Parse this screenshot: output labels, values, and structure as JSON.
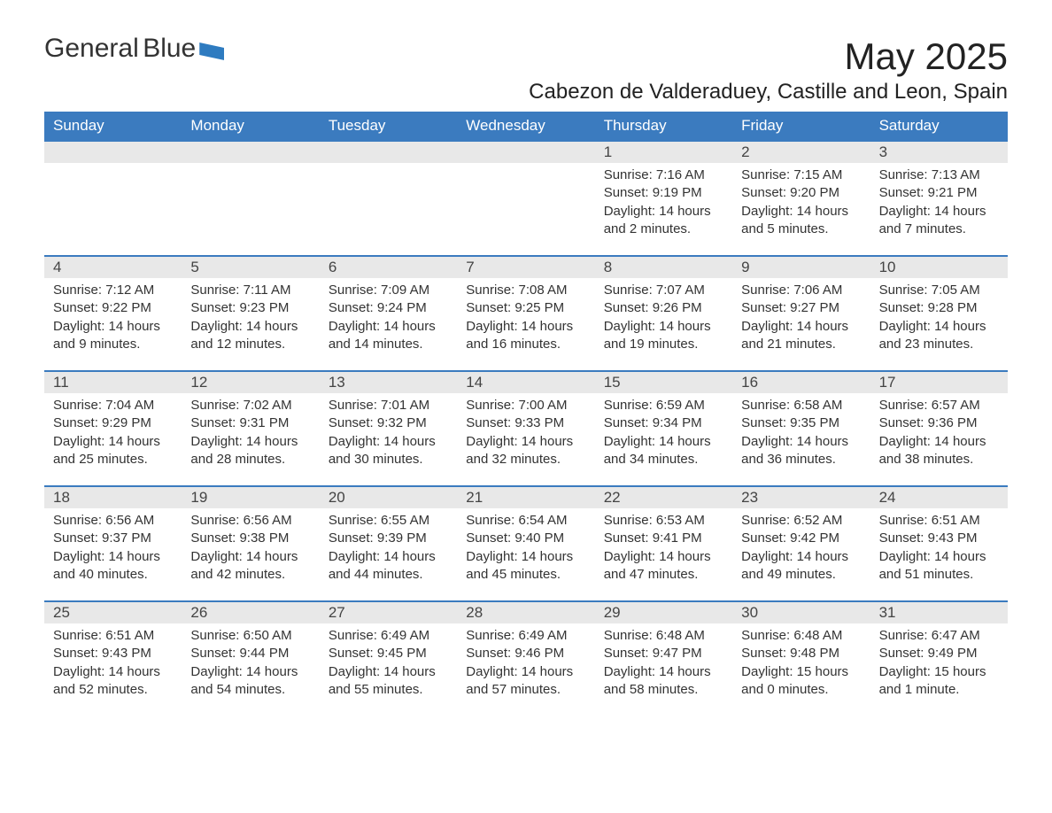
{
  "logo": {
    "text1": "General",
    "text2": "Blue"
  },
  "title": "May 2025",
  "location": "Cabezon de Valderaduey, Castille and Leon, Spain",
  "colors": {
    "header_bg": "#3b7bbf",
    "header_text": "#ffffff",
    "daynum_bg": "#e8e8e8",
    "row_border": "#3b7bbf",
    "body_text": "#333333",
    "logo_blue": "#2e7bc0"
  },
  "fonts": {
    "title_size_pt": 42,
    "location_size_pt": 24,
    "weekday_size_pt": 17,
    "body_size_pt": 15
  },
  "weekdays": [
    "Sunday",
    "Monday",
    "Tuesday",
    "Wednesday",
    "Thursday",
    "Friday",
    "Saturday"
  ],
  "weeks": [
    [
      {
        "day": "",
        "sunrise": "",
        "sunset": "",
        "daylight": ""
      },
      {
        "day": "",
        "sunrise": "",
        "sunset": "",
        "daylight": ""
      },
      {
        "day": "",
        "sunrise": "",
        "sunset": "",
        "daylight": ""
      },
      {
        "day": "",
        "sunrise": "",
        "sunset": "",
        "daylight": ""
      },
      {
        "day": "1",
        "sunrise": "Sunrise: 7:16 AM",
        "sunset": "Sunset: 9:19 PM",
        "daylight": "Daylight: 14 hours and 2 minutes."
      },
      {
        "day": "2",
        "sunrise": "Sunrise: 7:15 AM",
        "sunset": "Sunset: 9:20 PM",
        "daylight": "Daylight: 14 hours and 5 minutes."
      },
      {
        "day": "3",
        "sunrise": "Sunrise: 7:13 AM",
        "sunset": "Sunset: 9:21 PM",
        "daylight": "Daylight: 14 hours and 7 minutes."
      }
    ],
    [
      {
        "day": "4",
        "sunrise": "Sunrise: 7:12 AM",
        "sunset": "Sunset: 9:22 PM",
        "daylight": "Daylight: 14 hours and 9 minutes."
      },
      {
        "day": "5",
        "sunrise": "Sunrise: 7:11 AM",
        "sunset": "Sunset: 9:23 PM",
        "daylight": "Daylight: 14 hours and 12 minutes."
      },
      {
        "day": "6",
        "sunrise": "Sunrise: 7:09 AM",
        "sunset": "Sunset: 9:24 PM",
        "daylight": "Daylight: 14 hours and 14 minutes."
      },
      {
        "day": "7",
        "sunrise": "Sunrise: 7:08 AM",
        "sunset": "Sunset: 9:25 PM",
        "daylight": "Daylight: 14 hours and 16 minutes."
      },
      {
        "day": "8",
        "sunrise": "Sunrise: 7:07 AM",
        "sunset": "Sunset: 9:26 PM",
        "daylight": "Daylight: 14 hours and 19 minutes."
      },
      {
        "day": "9",
        "sunrise": "Sunrise: 7:06 AM",
        "sunset": "Sunset: 9:27 PM",
        "daylight": "Daylight: 14 hours and 21 minutes."
      },
      {
        "day": "10",
        "sunrise": "Sunrise: 7:05 AM",
        "sunset": "Sunset: 9:28 PM",
        "daylight": "Daylight: 14 hours and 23 minutes."
      }
    ],
    [
      {
        "day": "11",
        "sunrise": "Sunrise: 7:04 AM",
        "sunset": "Sunset: 9:29 PM",
        "daylight": "Daylight: 14 hours and 25 minutes."
      },
      {
        "day": "12",
        "sunrise": "Sunrise: 7:02 AM",
        "sunset": "Sunset: 9:31 PM",
        "daylight": "Daylight: 14 hours and 28 minutes."
      },
      {
        "day": "13",
        "sunrise": "Sunrise: 7:01 AM",
        "sunset": "Sunset: 9:32 PM",
        "daylight": "Daylight: 14 hours and 30 minutes."
      },
      {
        "day": "14",
        "sunrise": "Sunrise: 7:00 AM",
        "sunset": "Sunset: 9:33 PM",
        "daylight": "Daylight: 14 hours and 32 minutes."
      },
      {
        "day": "15",
        "sunrise": "Sunrise: 6:59 AM",
        "sunset": "Sunset: 9:34 PM",
        "daylight": "Daylight: 14 hours and 34 minutes."
      },
      {
        "day": "16",
        "sunrise": "Sunrise: 6:58 AM",
        "sunset": "Sunset: 9:35 PM",
        "daylight": "Daylight: 14 hours and 36 minutes."
      },
      {
        "day": "17",
        "sunrise": "Sunrise: 6:57 AM",
        "sunset": "Sunset: 9:36 PM",
        "daylight": "Daylight: 14 hours and 38 minutes."
      }
    ],
    [
      {
        "day": "18",
        "sunrise": "Sunrise: 6:56 AM",
        "sunset": "Sunset: 9:37 PM",
        "daylight": "Daylight: 14 hours and 40 minutes."
      },
      {
        "day": "19",
        "sunrise": "Sunrise: 6:56 AM",
        "sunset": "Sunset: 9:38 PM",
        "daylight": "Daylight: 14 hours and 42 minutes."
      },
      {
        "day": "20",
        "sunrise": "Sunrise: 6:55 AM",
        "sunset": "Sunset: 9:39 PM",
        "daylight": "Daylight: 14 hours and 44 minutes."
      },
      {
        "day": "21",
        "sunrise": "Sunrise: 6:54 AM",
        "sunset": "Sunset: 9:40 PM",
        "daylight": "Daylight: 14 hours and 45 minutes."
      },
      {
        "day": "22",
        "sunrise": "Sunrise: 6:53 AM",
        "sunset": "Sunset: 9:41 PM",
        "daylight": "Daylight: 14 hours and 47 minutes."
      },
      {
        "day": "23",
        "sunrise": "Sunrise: 6:52 AM",
        "sunset": "Sunset: 9:42 PM",
        "daylight": "Daylight: 14 hours and 49 minutes."
      },
      {
        "day": "24",
        "sunrise": "Sunrise: 6:51 AM",
        "sunset": "Sunset: 9:43 PM",
        "daylight": "Daylight: 14 hours and 51 minutes."
      }
    ],
    [
      {
        "day": "25",
        "sunrise": "Sunrise: 6:51 AM",
        "sunset": "Sunset: 9:43 PM",
        "daylight": "Daylight: 14 hours and 52 minutes."
      },
      {
        "day": "26",
        "sunrise": "Sunrise: 6:50 AM",
        "sunset": "Sunset: 9:44 PM",
        "daylight": "Daylight: 14 hours and 54 minutes."
      },
      {
        "day": "27",
        "sunrise": "Sunrise: 6:49 AM",
        "sunset": "Sunset: 9:45 PM",
        "daylight": "Daylight: 14 hours and 55 minutes."
      },
      {
        "day": "28",
        "sunrise": "Sunrise: 6:49 AM",
        "sunset": "Sunset: 9:46 PM",
        "daylight": "Daylight: 14 hours and 57 minutes."
      },
      {
        "day": "29",
        "sunrise": "Sunrise: 6:48 AM",
        "sunset": "Sunset: 9:47 PM",
        "daylight": "Daylight: 14 hours and 58 minutes."
      },
      {
        "day": "30",
        "sunrise": "Sunrise: 6:48 AM",
        "sunset": "Sunset: 9:48 PM",
        "daylight": "Daylight: 15 hours and 0 minutes."
      },
      {
        "day": "31",
        "sunrise": "Sunrise: 6:47 AM",
        "sunset": "Sunset: 9:49 PM",
        "daylight": "Daylight: 15 hours and 1 minute."
      }
    ]
  ]
}
